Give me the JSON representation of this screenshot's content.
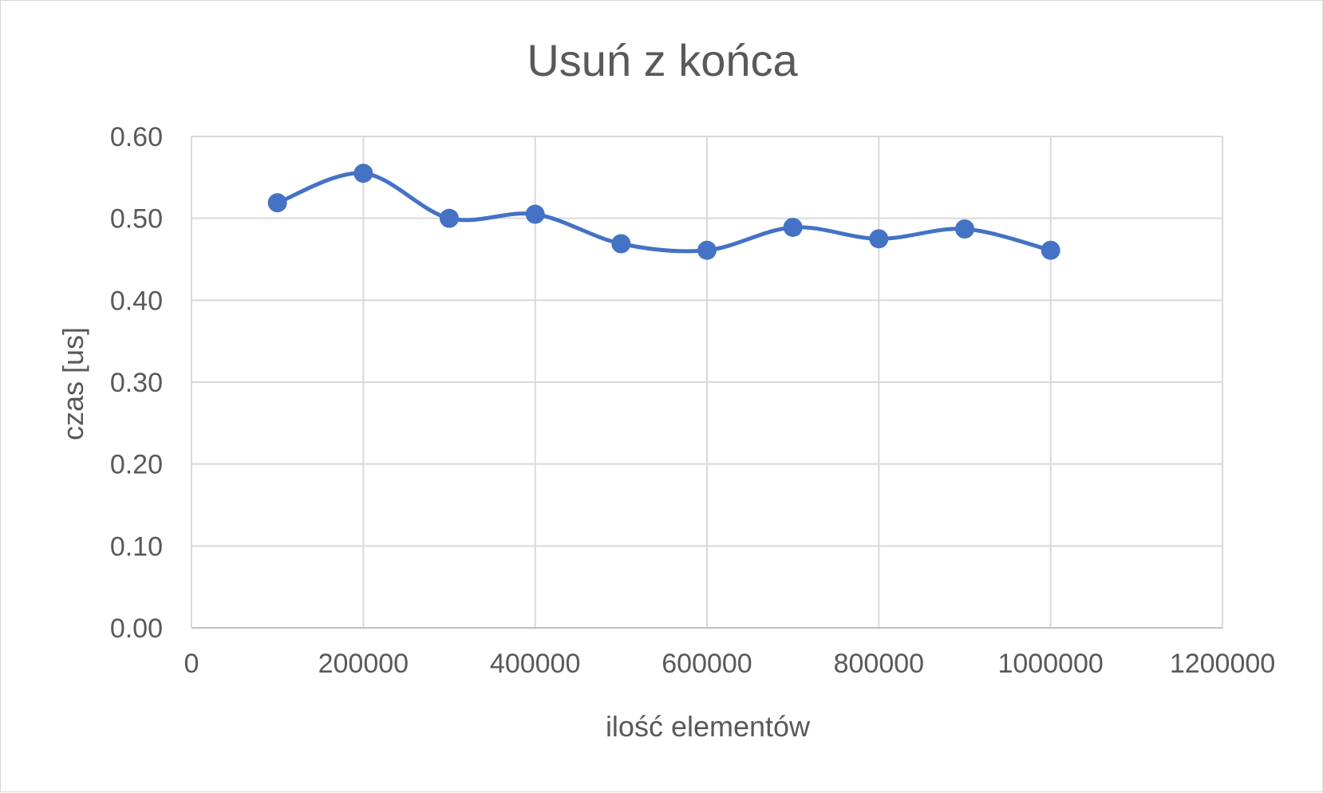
{
  "chart_data": {
    "type": "scatter",
    "title": "Usuń z końca",
    "xlabel": "ilość elementów",
    "ylabel": "czas [us]",
    "xlim": [
      0,
      1200000
    ],
    "ylim": [
      0,
      0.6
    ],
    "x_ticks": [
      "0",
      "200000",
      "400000",
      "600000",
      "800000",
      "1000000",
      "1200000"
    ],
    "y_ticks": [
      "0.00",
      "0.10",
      "0.20",
      "0.30",
      "0.40",
      "0.50",
      "0.60"
    ],
    "grid": true,
    "smooth_line": true,
    "legend": "none",
    "series": [
      {
        "color": "#4472c4",
        "x": [
          100000,
          200000,
          300000,
          400000,
          500000,
          600000,
          700000,
          800000,
          900000,
          1000000
        ],
        "y": [
          0.519,
          0.555,
          0.5,
          0.505,
          0.469,
          0.461,
          0.489,
          0.475,
          0.487,
          0.461
        ]
      }
    ]
  }
}
